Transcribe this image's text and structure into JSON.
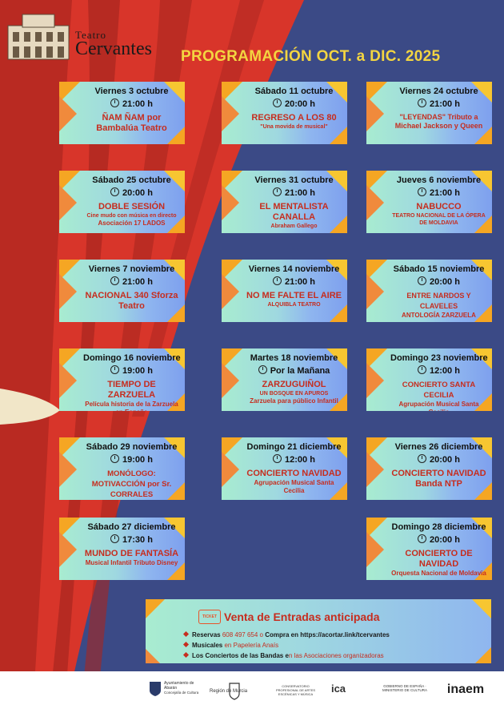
{
  "header": {
    "logo_line1": "Teatro",
    "logo_line2": "Cervantes",
    "title": "PROGRAMACIÓN OCT. a DIC. 2025"
  },
  "events": [
    {
      "date": "Viernes 3 octubre",
      "time": "21:00 h",
      "name": "ÑAM ÑAM por Bambalúa Teatro",
      "sub": ""
    },
    {
      "date": "Sábado 11 octubre",
      "time": "20:00 h",
      "name": "REGRESO A LOS 80",
      "sub": "\"Una movida de musical\""
    },
    {
      "date": "Viernes 24 octubre",
      "time": "21:00 h",
      "name": "\"LEYENDAS\" Tributo a Michael Jackson y Queen",
      "sub": ""
    },
    {
      "date": "Sábado 25 octubre",
      "time": "20:00 h",
      "name": "DOBLE SESIÓN",
      "sub": "Cine mudo con música en directo",
      "sub2": "Asociación 17 LADOS"
    },
    {
      "date": "Viernes 31 octubre",
      "time": "21:00 h",
      "name": "EL MENTALISTA CANALLA",
      "sub": "Abraham Gallego"
    },
    {
      "date": "Jueves 6 noviembre",
      "time": "21:00 h",
      "name": "NABUCCO",
      "sub": "TEATRO NACIONAL DE LA ÓPERA DE MOLDAVIA"
    },
    {
      "date": "Viernes 7 noviembre",
      "time": "21:00 h",
      "name": "NACIONAL 340 Sforza Teatro",
      "sub": ""
    },
    {
      "date": "Viernes 14 noviembre",
      "time": "21:00 h",
      "name": "NO ME FALTE EL AIRE",
      "sub": "ALQUIBLA TEATRO"
    },
    {
      "date": "Sábado 15 noviembre",
      "time": "20:00 h",
      "name": "ENTRE NARDOS Y CLAVELES",
      "sub": "ANTOLOGÍA ZARZUELA"
    },
    {
      "date": "Domingo 16 noviembre",
      "time": "19:00 h",
      "name": "TIEMPO DE ZARZUELA",
      "sub": "Película historia de la Zarzuela en España"
    },
    {
      "date": "Martes 18 noviembre",
      "time": "Por la Mañana",
      "name": "ZARZUGUIÑOL",
      "sub": "UN BOSQUE EN APUROS",
      "sub2": "Zarzuela para público Infantil"
    },
    {
      "date": "Domingo 23 noviembre",
      "time": "12:00 h",
      "name": "CONCIERTO SANTA CECILIA",
      "sub": "Agrupación Musical Santa Cecilia"
    },
    {
      "date": "Sábado 29 noviembre",
      "time": "19:00 h",
      "name": "MONÓLOGO: MOTIVACCIÓN por Sr. CORRALES",
      "sub": ""
    },
    {
      "date": "Domingo 21 diciembre",
      "time": "12:00 h",
      "name": "CONCIERTO NAVIDAD",
      "sub": "Agrupación Musical Santa Cecilia"
    },
    {
      "date": "Viernes 26 diciembre",
      "time": "20:00 h",
      "name": "CONCIERTO NAVIDAD Banda NTP",
      "sub": ""
    },
    {
      "date": "Sábado 27  diciembre",
      "time": "17:30 h",
      "name": "MUNDO DE FANTASÍA",
      "sub": "Musical Infantil Tributo Disney"
    },
    {
      "date": "Domingo 28  diciembre",
      "time": "20:00 h",
      "name": "CONCIERTO DE NAVIDAD",
      "sub": "Orquesta Nacional de Moldavia"
    }
  ],
  "sales": {
    "ticket_label": "TICKET",
    "title": "Venta de Entradas anticipada",
    "line1_a": "Reservas",
    "line1_b": "608 497 654 o",
    "line1_c": "Compra en https://acortar.link/tcervantes",
    "line2_a": "Musicales",
    "line2_b": "en Papelería Anaís",
    "line3_a": "Los Conciertos de las Bandas e",
    "line3_b": "n las Asociaciones organizadoras"
  },
  "footer": {
    "logo1_name": "Ayuntamiento de Abarán",
    "logo1_sub": "Concejalía de Cultura",
    "logo2": "Región de Murcia",
    "logo3": "CONSERVATORIO PROFESIONAL DE ARTES ESCÉNICAS Y MÚSICA",
    "logo4": "ica",
    "logo5": "GOBIERNO DE ESPAÑA · MINISTERIO DE CULTURA",
    "logo6": "inaem"
  },
  "colors": {
    "background": "#3b4a86",
    "curtain": "#d8352a",
    "title": "#f3d541",
    "accent": "#c62d1f"
  }
}
